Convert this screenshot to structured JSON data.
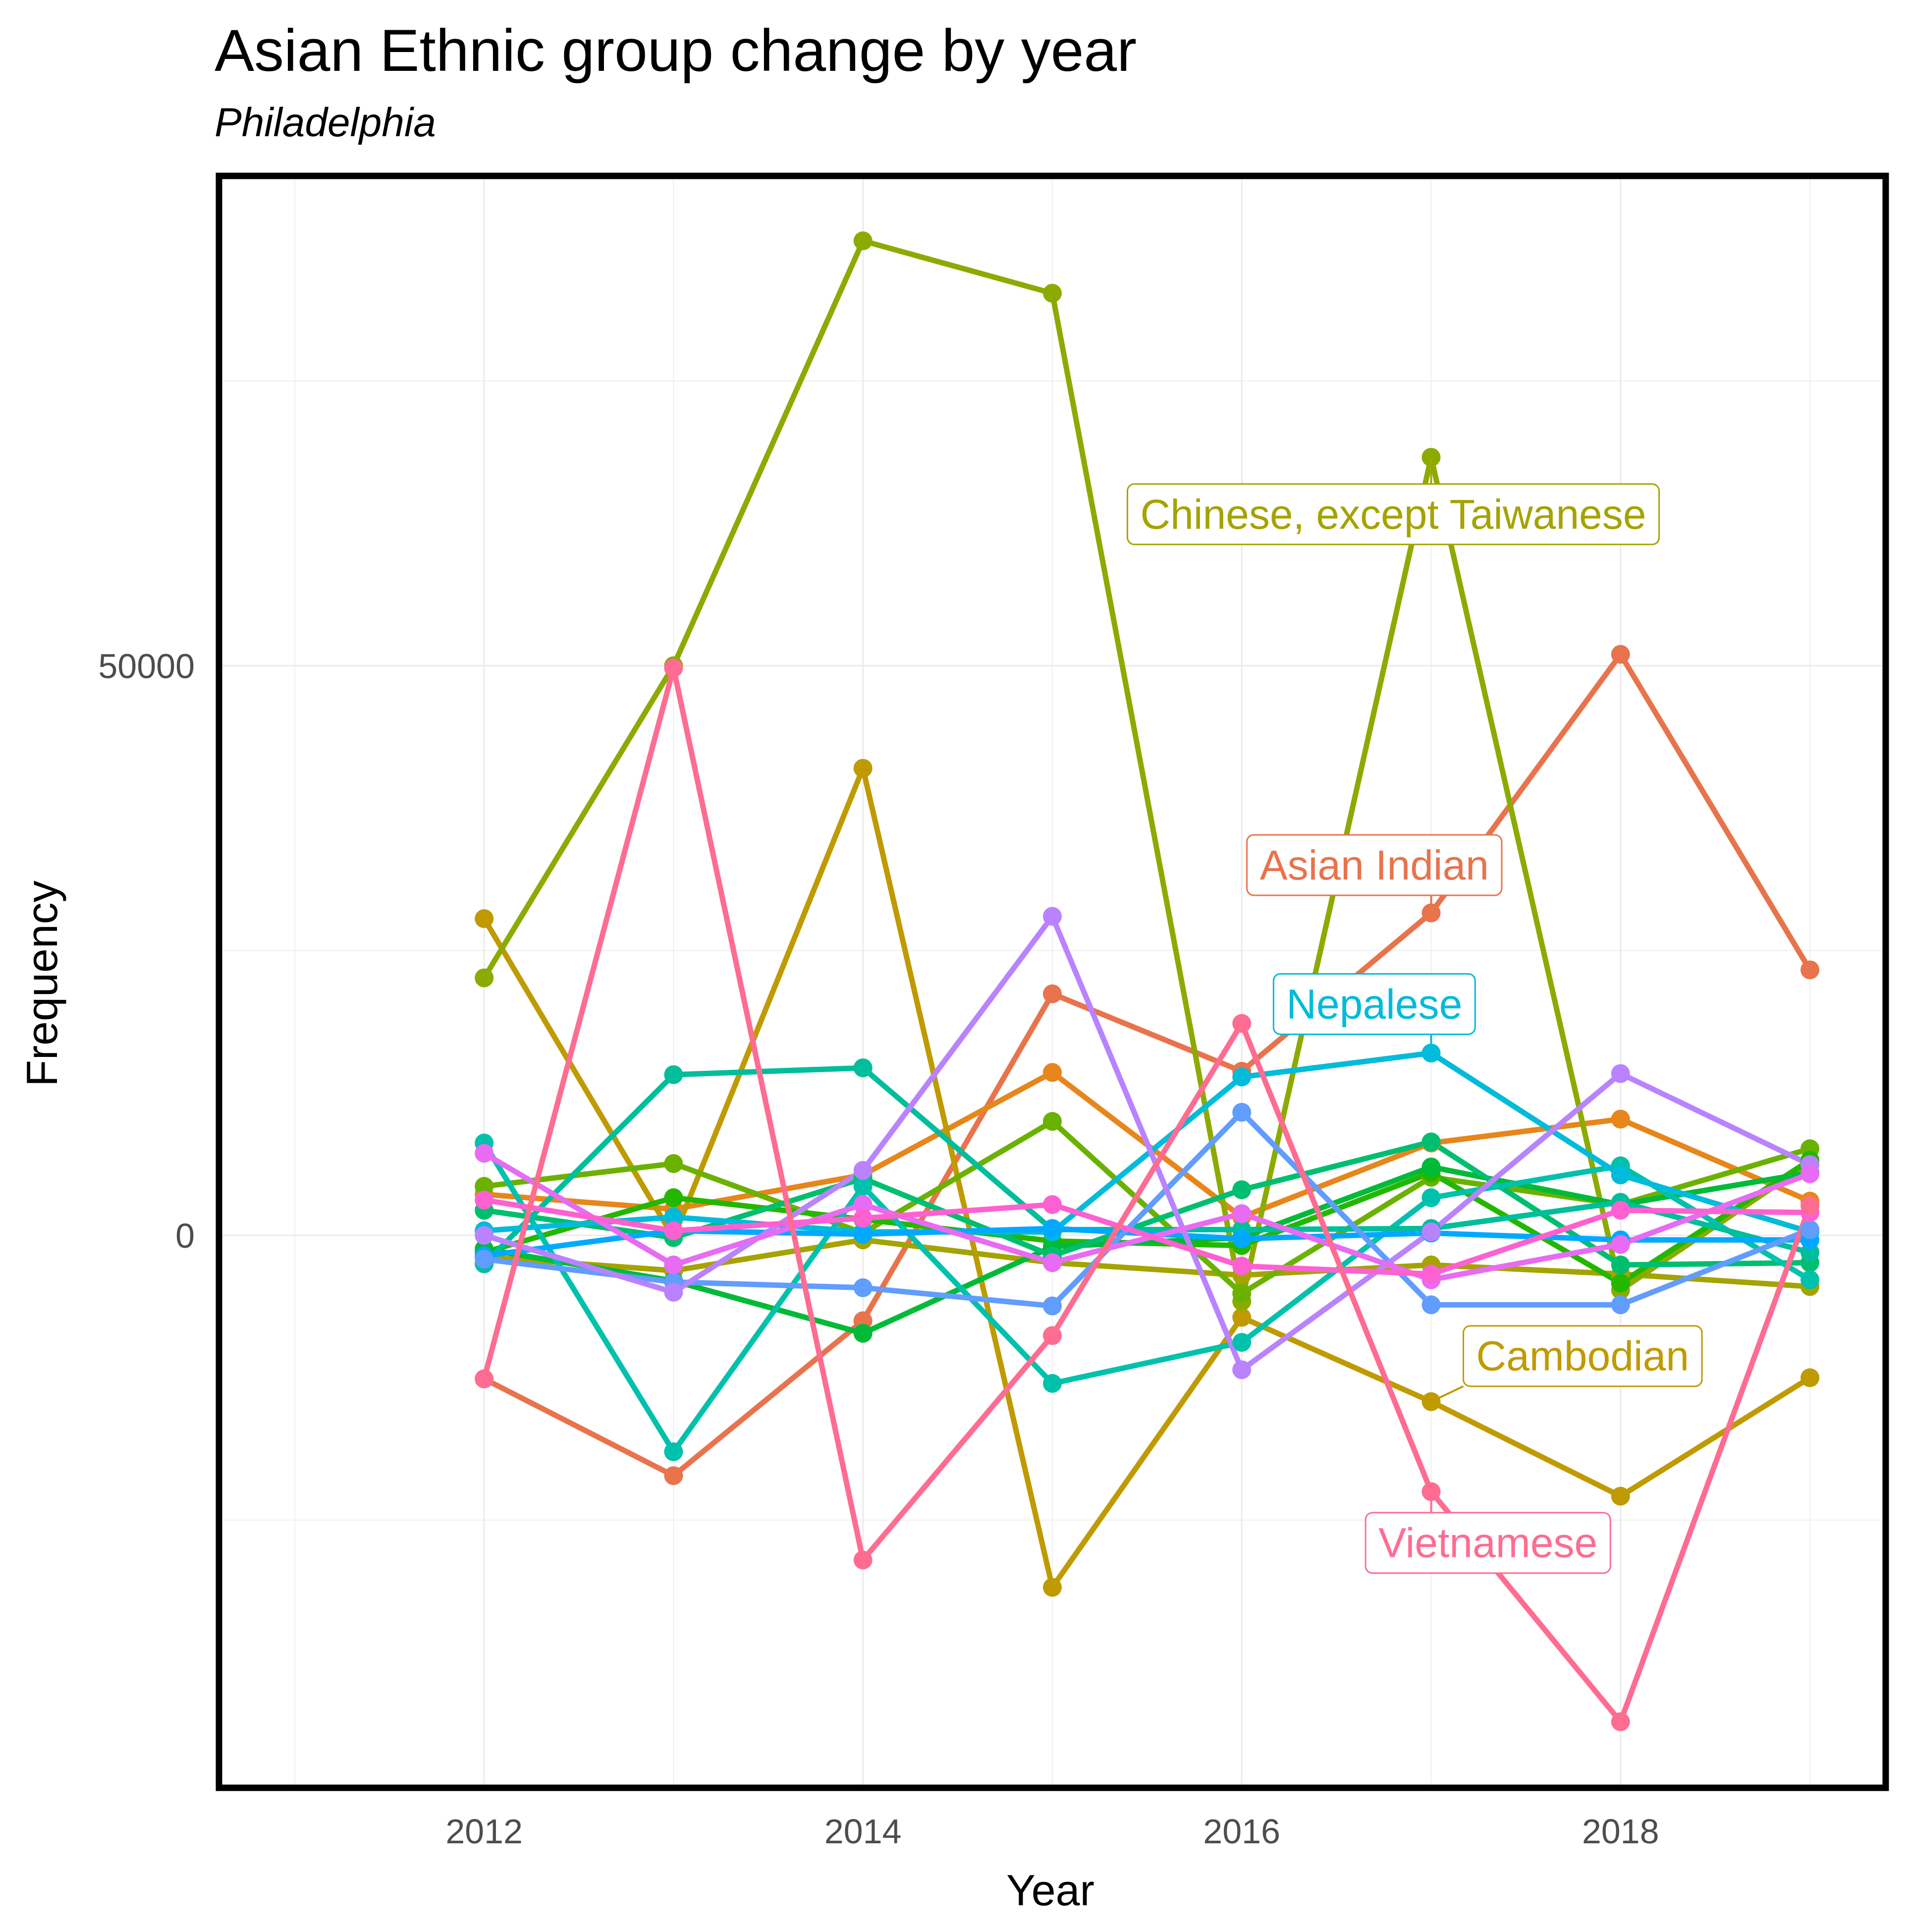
{
  "chart_data": {
    "type": "line",
    "title": "Asian Ethnic group change by year",
    "subtitle": "Philadelphia",
    "xlabel": "Year",
    "ylabel": "Frequency",
    "x": [
      2012,
      2013,
      2014,
      2015,
      2016,
      2017,
      2018,
      2019
    ],
    "xlim": [
      2010.6,
      2019.4
    ],
    "ylim": [
      -48500,
      93000
    ],
    "x_ticks": [
      2012,
      2014,
      2016,
      2018
    ],
    "y_ticks": [
      0,
      50000
    ],
    "grid": true,
    "legend": "none",
    "series": [
      {
        "name": "Asian Indian",
        "color": "#E8734C",
        "values": [
          -12600,
          -21100,
          -7500,
          21200,
          14400,
          28300,
          51000,
          23300
        ]
      },
      {
        "name": "",
        "color": "#E7861B",
        "values": [
          3600,
          2300,
          5300,
          14300,
          1600,
          8100,
          10200,
          3000
        ]
      },
      {
        "name": "Cambodian",
        "color": "#BF9A00",
        "values": [
          27800,
          -200,
          41000,
          -30900,
          -7200,
          -14600,
          -22900,
          -12500
        ]
      },
      {
        "name": "",
        "color": "#A5A300",
        "values": [
          -1900,
          -3100,
          -400,
          -2400,
          -3500,
          -2600,
          -3400,
          -4500
        ]
      },
      {
        "name": "Chinese, except Taiwanese",
        "color": "#8CAB00",
        "values": [
          22600,
          50000,
          87300,
          82700,
          -5800,
          68300,
          -4800,
          6400
        ]
      },
      {
        "name": "",
        "color": "#6BB100",
        "values": [
          4300,
          6300,
          200,
          10000,
          -5100,
          5100,
          2700,
          7600
        ]
      },
      {
        "name": "",
        "color": "#24B700",
        "values": [
          -1500,
          3300,
          1400,
          -500,
          -900,
          5500,
          -4200,
          6600
        ]
      },
      {
        "name": "",
        "color": "#00BA38",
        "values": [
          -1200,
          -4000,
          -8600,
          -1000,
          -200,
          6000,
          2700,
          5500
        ]
      },
      {
        "name": "",
        "color": "#00BE70",
        "values": [
          2200,
          -200,
          5000,
          -1800,
          4000,
          8200,
          -2600,
          -2400
        ]
      },
      {
        "name": "",
        "color": "#00C1AB",
        "values": [
          8100,
          -19000,
          4300,
          -13000,
          -9400,
          3300,
          6100,
          -3900
        ]
      },
      {
        "name": "",
        "color": "#00BD9C",
        "values": [
          -2500,
          14100,
          14700,
          500,
          500,
          600,
          2900,
          -1500
        ]
      },
      {
        "name": "Nepalese",
        "color": "#00BBDA",
        "values": [
          400,
          1600,
          300,
          300,
          13900,
          16000,
          5300,
          300
        ]
      },
      {
        "name": "",
        "color": "#00A9FF",
        "values": [
          -1800,
          400,
          100,
          600,
          -300,
          200,
          -400,
          -400
        ]
      },
      {
        "name": "",
        "color": "#619CFF",
        "values": [
          -2100,
          -4100,
          -4600,
          -6200,
          10800,
          -6100,
          -6100,
          500
        ]
      },
      {
        "name": "",
        "color": "#B983FF",
        "values": [
          0,
          -5000,
          5700,
          28000,
          -11800,
          300,
          14200,
          6200
        ]
      },
      {
        "name": "",
        "color": "#E76BF3",
        "values": [
          7200,
          -2600,
          2700,
          -2400,
          1900,
          -3900,
          -800,
          5400
        ]
      },
      {
        "name": "",
        "color": "#FD61D1",
        "values": [
          3100,
          400,
          1500,
          2700,
          -2700,
          -3400,
          2200,
          2000
        ]
      },
      {
        "name": "Vietnamese",
        "color": "#FF6C91",
        "values": [
          -12600,
          49800,
          -28500,
          -8800,
          18600,
          -22500,
          -42700,
          2600
        ]
      }
    ],
    "annotations": [
      {
        "series": "Chinese, except Taiwanese",
        "text": "Chinese, except Taiwanese",
        "color": "#A5A300",
        "x": 2016.8,
        "y": 63300,
        "anchor_x": 2017,
        "anchor_y": 68300
      },
      {
        "series": "Asian Indian",
        "text": "Asian Indian",
        "color": "#E8734C",
        "x": 2016.7,
        "y": 32500,
        "anchor_x": 2017,
        "anchor_y": 28300
      },
      {
        "series": "Nepalese",
        "text": "Nepalese",
        "color": "#00BBDA",
        "x": 2016.7,
        "y": 20300,
        "anchor_x": 2017,
        "anchor_y": 16000
      },
      {
        "series": "Cambodian",
        "text": "Cambodian",
        "color": "#BF9A00",
        "x": 2017.8,
        "y": -10600,
        "anchor_x": 2017,
        "anchor_y": -14600
      },
      {
        "series": "Vietnamese",
        "text": "Vietnamese",
        "color": "#FF6C91",
        "x": 2017.3,
        "y": -27000,
        "anchor_x": 2017,
        "anchor_y": -22500
      }
    ]
  }
}
